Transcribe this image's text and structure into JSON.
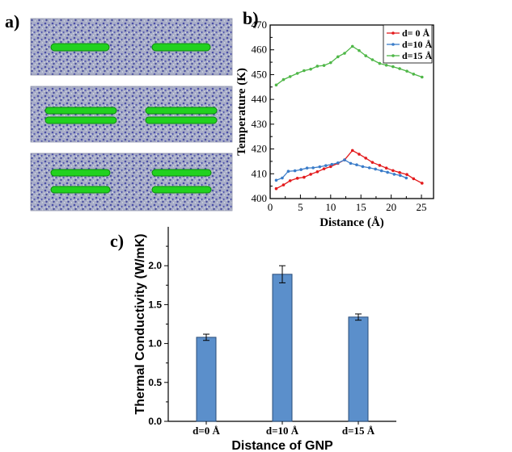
{
  "labels": {
    "a": "a)",
    "b": "b)",
    "c": "c)"
  },
  "colors": {
    "matrix_bg": "#a9aec8",
    "matrix_dot_blue": "#4b4fa6",
    "matrix_dot_light": "#d8dde6",
    "gnp_fill": "#22d11f",
    "series_red": "#e31a1c",
    "series_blue": "#3a7cc9",
    "series_green": "#4fb748",
    "bar_fill": "#5b8fcb",
    "bar_stroke": "#2a4d7a"
  },
  "chart_data": [
    {
      "type": "line",
      "panel": "b",
      "xlabel": "Distance (Å)",
      "ylabel": "Temperature (K)",
      "xlim": [
        0,
        27
      ],
      "ylim": [
        400,
        470
      ],
      "xticks": [
        0,
        5,
        10,
        15,
        20,
        25
      ],
      "yticks": [
        400,
        410,
        420,
        430,
        440,
        450,
        460,
        470
      ],
      "legend_position": "top-right",
      "series": [
        {
          "name": "d= 0  Å",
          "color": "#e31a1c",
          "x": [
            1.0,
            2.2,
            3.3,
            4.5,
            5.6,
            6.7,
            7.8,
            8.9,
            10.0,
            11.2,
            12.3,
            13.6,
            14.7,
            15.8,
            16.9,
            18.1,
            19.2,
            20.3,
            21.4,
            22.6,
            23.7,
            25.1
          ],
          "y": [
            404.0,
            405.5,
            407.2,
            408.2,
            408.6,
            409.8,
            410.8,
            412.0,
            412.9,
            414.2,
            415.6,
            419.4,
            417.9,
            416.3,
            414.6,
            413.4,
            412.3,
            411.3,
            410.5,
            409.7,
            408.0,
            406.2
          ]
        },
        {
          "name": "d=10 Å",
          "color": "#3a7cc9",
          "x": [
            1.0,
            2.0,
            3.0,
            4.1,
            5.1,
            6.1,
            7.1,
            8.2,
            9.2,
            10.2,
            11.2,
            12.3,
            13.3,
            14.3,
            15.3,
            16.4,
            17.4,
            18.4,
            19.4,
            20.5,
            21.5,
            22.5
          ],
          "y": [
            407.4,
            408.3,
            411.0,
            411.2,
            411.7,
            412.3,
            412.4,
            412.8,
            413.3,
            413.8,
            414.4,
            415.6,
            414.2,
            413.6,
            412.9,
            412.4,
            411.9,
            411.2,
            410.6,
            409.8,
            409.3,
            408.3
          ]
        },
        {
          "name": "d=15 Å",
          "color": "#4fb748",
          "x": [
            1.0,
            2.2,
            3.3,
            4.5,
            5.6,
            6.7,
            7.8,
            8.9,
            10.0,
            11.2,
            12.3,
            13.6,
            14.7,
            15.8,
            16.9,
            18.1,
            19.2,
            20.3,
            21.4,
            22.6,
            23.7,
            25.1
          ],
          "y": [
            445.8,
            448.0,
            449.2,
            450.5,
            451.6,
            452.2,
            453.4,
            453.7,
            454.8,
            457.2,
            458.6,
            461.4,
            459.7,
            457.6,
            456.0,
            454.5,
            453.8,
            453.2,
            452.4,
            451.4,
            450.2,
            449.0
          ]
        }
      ]
    },
    {
      "type": "bar",
      "panel": "c",
      "categories": [
        "d=0 Å",
        "d=10 Å",
        "d=15 Å"
      ],
      "values": [
        1.08,
        1.89,
        1.34
      ],
      "errors": [
        0.04,
        0.11,
        0.04
      ],
      "xlabel": "Distance of GNP",
      "ylabel": "Thermal Conductivity (W/mK)",
      "ylim": [
        0,
        2.5
      ],
      "yticks": [
        "0.0",
        "0.5",
        "1.0",
        "1.5",
        "2.0"
      ]
    }
  ]
}
